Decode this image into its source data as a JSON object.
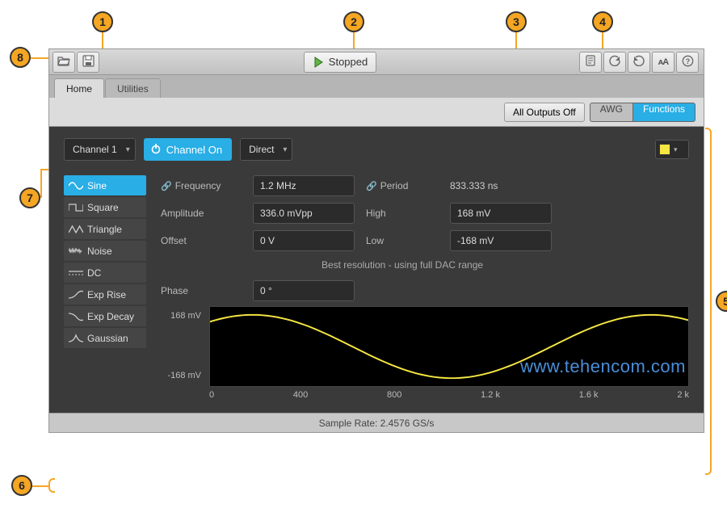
{
  "toolbar": {
    "play_label": "Stopped",
    "play_color": "#5fb544"
  },
  "tabs": {
    "home": "Home",
    "utilities": "Utilities"
  },
  "topstrip": {
    "all_off": "All Outputs Off",
    "mode_awg": "AWG",
    "mode_func": "Functions"
  },
  "channel": {
    "dropdown": "Channel 1",
    "on_label": "Channel On",
    "output": "Direct",
    "swatch_color": "#f5e642"
  },
  "waveforms": [
    {
      "id": "sine",
      "label": "Sine"
    },
    {
      "id": "square",
      "label": "Square"
    },
    {
      "id": "triangle",
      "label": "Triangle"
    },
    {
      "id": "noise",
      "label": "Noise"
    },
    {
      "id": "dc",
      "label": "DC"
    },
    {
      "id": "exprise",
      "label": "Exp Rise"
    },
    {
      "id": "expdecay",
      "label": "Exp Decay"
    },
    {
      "id": "gaussian",
      "label": "Gaussian"
    }
  ],
  "params": {
    "freq_label": "Frequency",
    "freq_value": "1.2 MHz",
    "period_label": "Period",
    "period_value": "833.333 ns",
    "amp_label": "Amplitude",
    "amp_value": "336.0 mVpp",
    "high_label": "High",
    "high_value": "168 mV",
    "offset_label": "Offset",
    "offset_value": "0 V",
    "low_label": "Low",
    "low_value": "-168 mV",
    "info": "Best resolution - using full DAC range",
    "phase_label": "Phase",
    "phase_value": "0 °"
  },
  "chart": {
    "y_top": "168 mV",
    "y_bot": "-168 mV",
    "x_ticks": [
      "0",
      "400",
      "800",
      "1.2 k",
      "1.6 k",
      "2 k"
    ],
    "line_color": "#f5e642",
    "bg_color": "#000000"
  },
  "watermark": "www.tehencom.com",
  "status": "Sample Rate: 2.4576 GS/s",
  "callouts": [
    "1",
    "2",
    "3",
    "4",
    "5",
    "6",
    "7",
    "8"
  ],
  "colors": {
    "accent": "#29aee6",
    "callout": "#f5a623"
  }
}
